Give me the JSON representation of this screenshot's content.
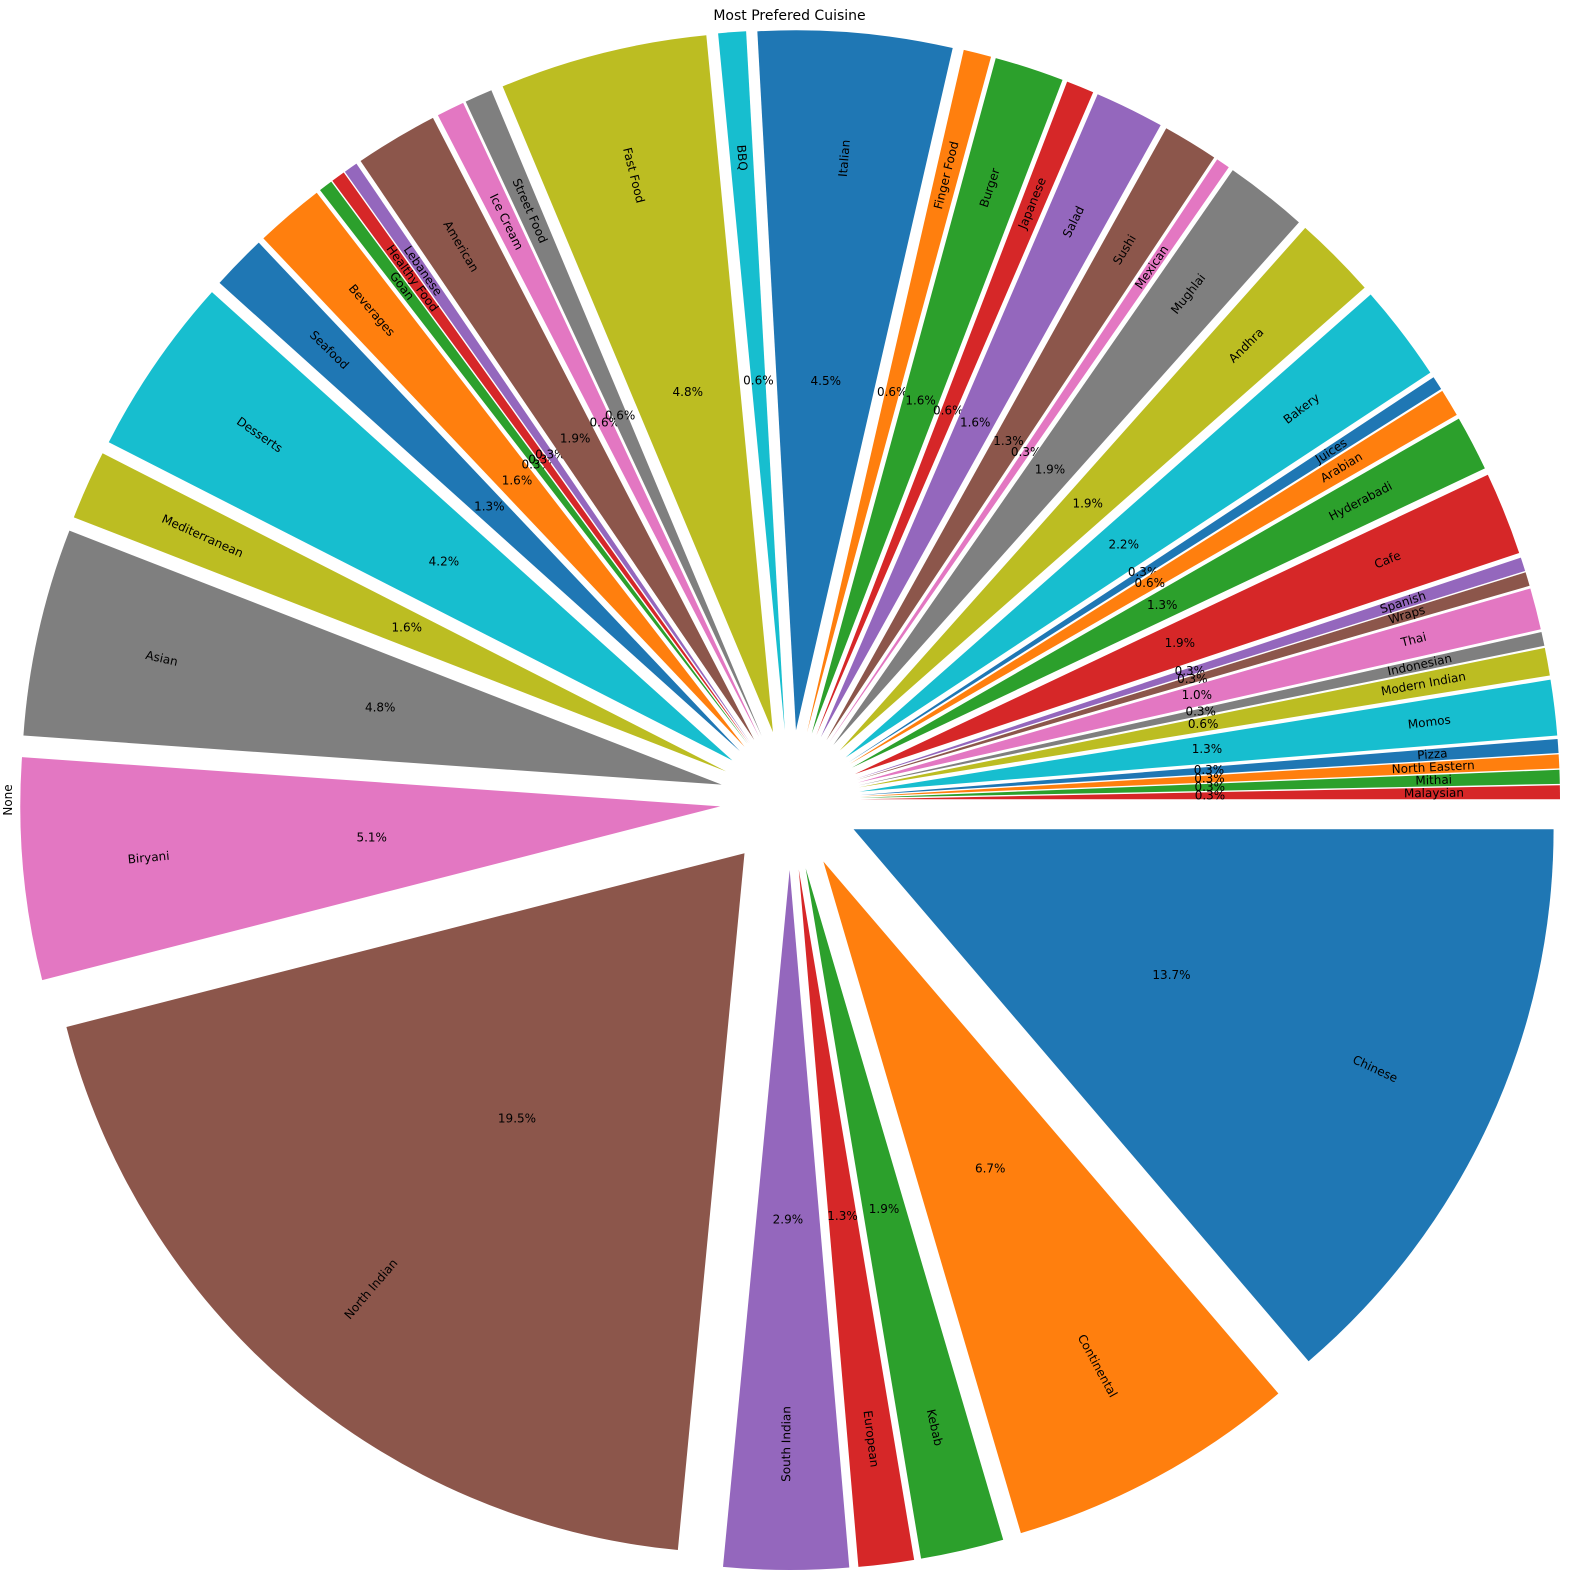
{
  "chart_data": {
    "type": "pie",
    "title": "Most Prefered Cuisine",
    "ylabel": "None",
    "startangle": 0,
    "counterclock": false,
    "explode": 0.1,
    "rotatelabels": true,
    "colors_cycle": [
      "#1f77b4",
      "#ff7f0e",
      "#2ca02c",
      "#d62728",
      "#9467bd",
      "#8c564b",
      "#e377c2",
      "#7f7f7f",
      "#bcbd22",
      "#17becf"
    ],
    "categories": [
      "Chinese",
      "Continental",
      "Kebab",
      "European",
      "South Indian",
      "North Indian",
      "Biryani",
      "Asian",
      "Mediterranean",
      "Desserts",
      "Seafood",
      "Beverages",
      "Goan",
      "Healthy Food",
      "Lebanese",
      "American",
      "Ice Cream",
      "Street Food",
      "Fast Food",
      "BBQ",
      "Italian",
      "Finger Food",
      "Burger",
      "Japanese",
      "Salad",
      "Sushi",
      "Mexican",
      "Mughlai",
      "Andhra",
      "Bakery",
      "Juices",
      "Arabian",
      "Hyderabadi",
      "Cafe",
      "Spanish",
      "Wraps",
      "Thai",
      "Indonesian",
      "Modern Indian",
      "Momos",
      "Pizza",
      "North Eastern",
      "Mithai",
      "Malaysian"
    ],
    "values": [
      43,
      21,
      6,
      4,
      9,
      61,
      16,
      15,
      5,
      13,
      4,
      5,
      1,
      1,
      1,
      6,
      2,
      2,
      15,
      2,
      14,
      2,
      5,
      2,
      5,
      4,
      1,
      6,
      6,
      7,
      1,
      2,
      4,
      6,
      1,
      1,
      3,
      1,
      2,
      4,
      1,
      1,
      1,
      1
    ],
    "pct_labels": [
      "13.7%",
      "6.7%",
      "1.9%",
      "1.3%",
      "2.9%",
      "19.5%",
      "5.1%",
      "4.8%",
      "1.6%",
      "4.2%",
      "1.3%",
      "1.6%",
      "0.3%",
      "0.3%",
      "0.3%",
      "1.9%",
      "0.6%",
      "0.6%",
      "4.8%",
      "0.6%",
      "4.5%",
      "0.6%",
      "1.6%",
      "0.6%",
      "1.6%",
      "1.3%",
      "0.3%",
      "1.9%",
      "1.9%",
      "2.2%",
      "0.3%",
      "0.6%",
      "1.3%",
      "1.9%",
      "0.3%",
      "0.3%",
      "1.0%",
      "0.3%",
      "0.6%",
      "1.3%",
      "0.3%",
      "0.3%",
      "0.3%",
      "0.3%"
    ]
  }
}
